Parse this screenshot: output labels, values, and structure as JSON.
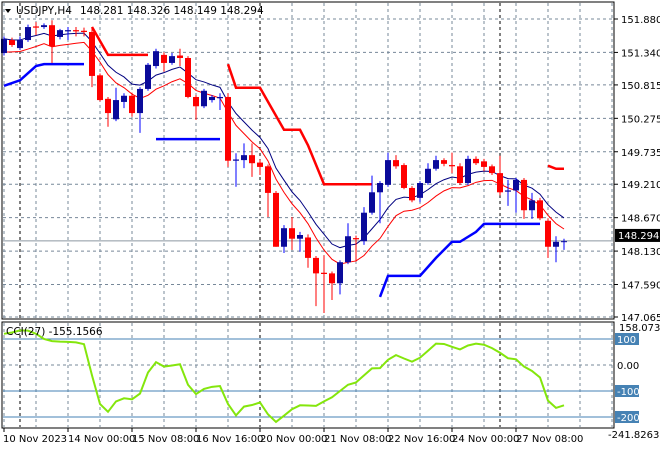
{
  "header": {
    "symbol": "USDJPY,H4",
    "ohlc": "148.281 148.326 148.149 148.294"
  },
  "cci_header": {
    "label": "CCI(27) -155.1566"
  },
  "colors": {
    "bull_body": "#0a0a9a",
    "bull_wick": "#0000ff",
    "bear": "#ff0000",
    "ma_navy": "#000080",
    "ma_red": "#ff0000",
    "stop_red": "#ff0000",
    "stop_blue": "#0000ff",
    "cci": "#84e60c",
    "level": "#4682b4",
    "grid": "#778899"
  },
  "chart_data": [
    {
      "type": "candlestick",
      "title": "USDJPY,H4",
      "ylim": [
        147.065,
        151.88
      ],
      "y_ticks": [
        "151.880",
        "151.340",
        "150.815",
        "150.275",
        "149.735",
        "149.210",
        "148.670",
        "148.130",
        "147.590",
        "147.065"
      ],
      "y_tick_values": [
        151.88,
        151.34,
        150.815,
        150.275,
        149.735,
        149.21,
        148.67,
        148.13,
        147.59,
        147.065
      ],
      "current_price": 148.294,
      "current_price_label": "148.294",
      "x_labels": [
        "10 Nov 2023",
        "14 Nov 00:00",
        "15 Nov 08:00",
        "16 Nov 16:00",
        "20 Nov 00:00",
        "21 Nov 08:00",
        "22 Nov 16:00",
        "24 Nov 00:00",
        "27 Nov 08:00"
      ],
      "candles_ohlc": [
        [
          151.33,
          151.6,
          151.29,
          151.56
        ],
        [
          151.54,
          151.58,
          151.43,
          151.46
        ],
        [
          151.41,
          151.6,
          151.38,
          151.54
        ],
        [
          151.54,
          151.79,
          151.51,
          151.75
        ],
        [
          151.76,
          151.83,
          151.62,
          151.74
        ],
        [
          151.75,
          151.81,
          151.72,
          151.78
        ],
        [
          151.78,
          151.86,
          151.17,
          151.44
        ],
        [
          151.59,
          151.72,
          151.55,
          151.7
        ],
        [
          151.68,
          151.75,
          151.54,
          151.7
        ],
        [
          151.7,
          151.75,
          151.6,
          151.68
        ],
        [
          151.69,
          151.74,
          151.6,
          151.67
        ],
        [
          151.67,
          151.75,
          150.78,
          150.96
        ],
        [
          150.97,
          151.0,
          150.55,
          150.57
        ],
        [
          150.59,
          150.62,
          150.14,
          150.36
        ],
        [
          150.26,
          150.77,
          150.23,
          150.57
        ],
        [
          150.54,
          150.68,
          150.44,
          150.64
        ],
        [
          150.64,
          150.69,
          150.3,
          150.36
        ],
        [
          150.36,
          150.78,
          150.04,
          150.75
        ],
        [
          150.75,
          151.17,
          150.72,
          151.14
        ],
        [
          151.12,
          151.4,
          151.08,
          151.36
        ],
        [
          151.3,
          151.34,
          151.03,
          151.17
        ],
        [
          151.17,
          151.33,
          151.14,
          151.28
        ],
        [
          151.29,
          151.4,
          151.12,
          151.25
        ],
        [
          151.25,
          151.28,
          150.6,
          150.62
        ],
        [
          150.62,
          150.65,
          150.25,
          150.47
        ],
        [
          150.47,
          150.75,
          150.44,
          150.72
        ],
        [
          150.57,
          150.65,
          150.53,
          150.62
        ],
        [
          150.6,
          150.68,
          150.41,
          150.62
        ],
        [
          150.62,
          150.68,
          149.49,
          149.59
        ],
        [
          149.59,
          149.71,
          149.17,
          149.61
        ],
        [
          149.6,
          149.87,
          149.47,
          149.68
        ],
        [
          149.68,
          149.87,
          149.33,
          149.55
        ],
        [
          149.56,
          149.61,
          149.36,
          149.49
        ],
        [
          149.5,
          149.53,
          148.68,
          149.07
        ],
        [
          149.07,
          149.1,
          148.2,
          148.2
        ],
        [
          148.2,
          148.55,
          148.1,
          148.5
        ],
        [
          148.5,
          148.68,
          148.15,
          148.33
        ],
        [
          148.33,
          148.44,
          148.12,
          148.39
        ],
        [
          148.35,
          148.4,
          147.86,
          148.02
        ],
        [
          148.02,
          148.05,
          147.24,
          147.77
        ],
        [
          147.78,
          148.06,
          147.13,
          147.76
        ],
        [
          147.77,
          147.8,
          147.34,
          147.61
        ],
        [
          147.61,
          147.98,
          147.43,
          147.95
        ],
        [
          147.95,
          148.58,
          147.92,
          148.37
        ],
        [
          148.34,
          148.38,
          147.96,
          148.32
        ],
        [
          148.29,
          148.84,
          148.23,
          148.75
        ],
        [
          148.75,
          149.35,
          148.72,
          149.08
        ],
        [
          149.08,
          149.26,
          148.58,
          149.23
        ],
        [
          149.2,
          149.72,
          149.17,
          149.6
        ],
        [
          149.6,
          149.68,
          149.46,
          149.5
        ],
        [
          149.52,
          149.55,
          149.13,
          149.15
        ],
        [
          149.15,
          149.18,
          148.92,
          148.95
        ],
        [
          148.99,
          149.26,
          148.92,
          149.23
        ],
        [
          149.23,
          149.55,
          149.2,
          149.46
        ],
        [
          149.46,
          149.67,
          149.43,
          149.6
        ],
        [
          149.6,
          149.63,
          149.5,
          149.54
        ],
        [
          149.52,
          149.72,
          149.39,
          149.5
        ],
        [
          149.5,
          149.55,
          149.2,
          149.23
        ],
        [
          149.23,
          149.67,
          149.2,
          149.62
        ],
        [
          149.62,
          149.66,
          149.52,
          149.55
        ],
        [
          149.58,
          149.62,
          149.42,
          149.49
        ],
        [
          149.5,
          149.53,
          149.36,
          149.39
        ],
        [
          149.39,
          149.67,
          149.03,
          149.08
        ],
        [
          149.09,
          149.28,
          148.86,
          149.11
        ],
        [
          149.11,
          149.31,
          148.75,
          149.28
        ],
        [
          149.28,
          149.31,
          148.65,
          148.79
        ],
        [
          148.79,
          149.07,
          148.65,
          148.95
        ],
        [
          148.95,
          148.99,
          148.63,
          148.66
        ],
        [
          148.62,
          148.66,
          148.02,
          148.2
        ],
        [
          148.2,
          148.37,
          147.95,
          148.28
        ],
        [
          148.28,
          148.33,
          148.15,
          148.29
        ]
      ],
      "stop_lines_red": [
        [
          [
            11,
            151.75
          ],
          [
            13,
            151.3
          ],
          [
            18,
            151.3
          ]
        ],
        [
          [
            28,
            151.15
          ],
          [
            29,
            150.77
          ],
          [
            32,
            150.77
          ],
          [
            35,
            150.09
          ],
          [
            37,
            150.09
          ],
          [
            38,
            149.84
          ],
          [
            40,
            149.21
          ],
          [
            46,
            149.21
          ]
        ],
        [
          [
            68,
            149.51
          ],
          [
            69,
            149.46
          ],
          [
            70,
            149.46
          ]
        ]
      ],
      "stop_lines_blue": [
        [
          [
            0,
            150.8
          ],
          [
            2,
            150.89
          ],
          [
            4,
            151.12
          ],
          [
            5,
            151.15
          ],
          [
            10,
            151.15
          ]
        ],
        [
          [
            19,
            149.94
          ],
          [
            27,
            149.94
          ]
        ],
        [
          [
            47,
            147.39
          ],
          [
            48,
            147.73
          ],
          [
            52,
            147.73
          ],
          [
            54,
            148.02
          ],
          [
            56,
            148.28
          ],
          [
            57,
            148.28
          ],
          [
            59,
            148.44
          ],
          [
            60,
            148.57
          ],
          [
            67,
            148.57
          ]
        ]
      ]
    },
    {
      "type": "line",
      "title": "CCI(27)",
      "ylim": [
        -241.8263,
        158.0738
      ],
      "range_labels": [
        "158.0738",
        "-241.8263"
      ],
      "levels": [
        100,
        0,
        -100,
        -200
      ],
      "level_labels": [
        "100",
        "0.00",
        "-100",
        "-200"
      ],
      "values": [
        120,
        125,
        133,
        132,
        120,
        100,
        92,
        90,
        89,
        87,
        80,
        -40,
        -150,
        -180,
        -140,
        -128,
        -132,
        -110,
        -29,
        11,
        -6,
        -2,
        3,
        -76,
        -112,
        -92,
        -84,
        -81,
        -150,
        -194,
        -160,
        -154,
        -144,
        -190,
        -219,
        -195,
        -170,
        -155,
        -156,
        -157,
        -140,
        -124,
        -100,
        -76,
        -67,
        -40,
        -13,
        -12,
        20,
        38,
        25,
        13,
        28,
        55,
        82,
        81,
        70,
        60,
        75,
        82,
        78,
        65,
        47,
        26,
        22,
        -6,
        -23,
        -48,
        -137,
        -165,
        -155
      ]
    }
  ]
}
